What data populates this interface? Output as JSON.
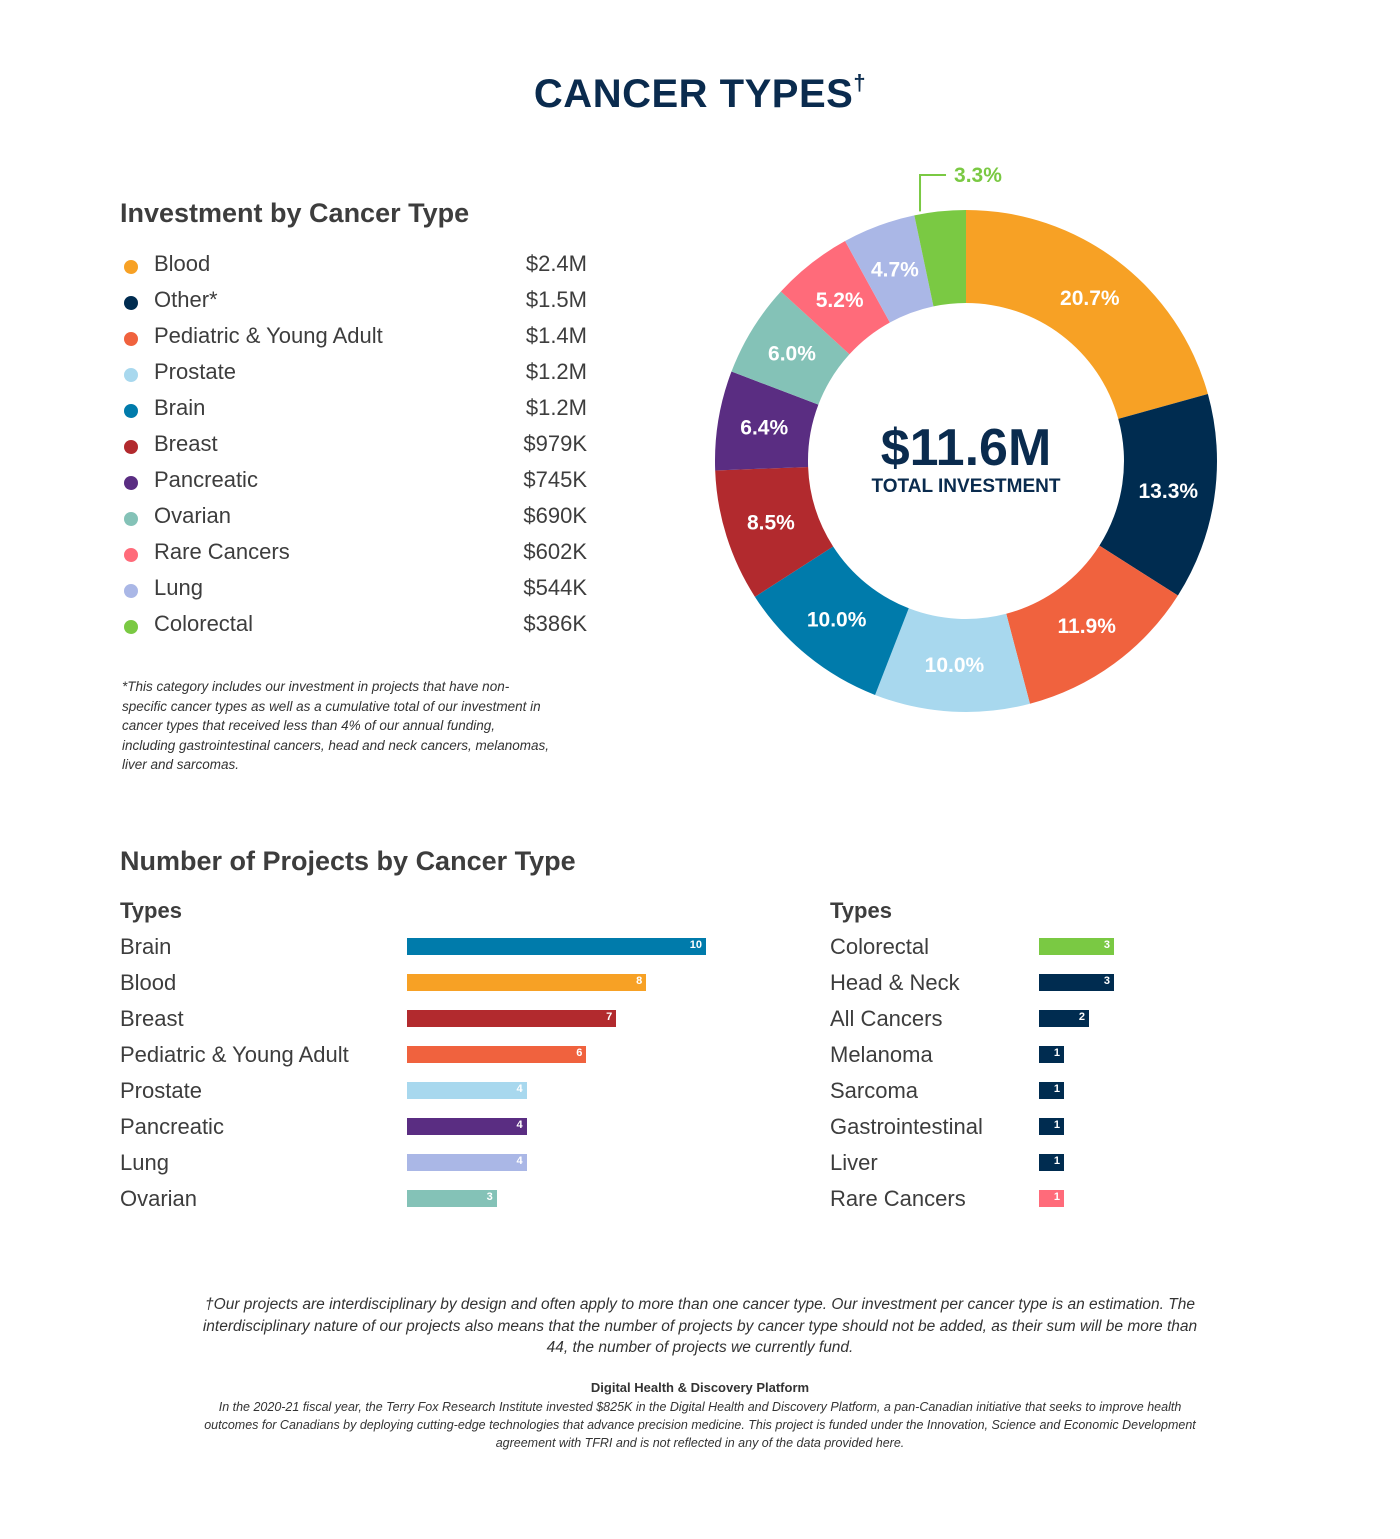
{
  "title": "CANCER TYPES",
  "title_mark": "†",
  "investment": {
    "heading": "Investment by Cancer Type",
    "total_value": "$11.6M",
    "total_label": "TOTAL INVESTMENT",
    "footnote": "*This category includes our investment in projects that have non-specific cancer types as well as a cumulative total of our investment in cancer types that received less than 4% of our annual funding, including gastrointestinal cancers, head and neck cancers, melanomas, liver and sarcomas."
  },
  "projects": {
    "heading": "Number of Projects by Cancer Type",
    "types_label_left": "Types",
    "types_label_right": "Types"
  },
  "footer": {
    "note": "†Our projects are interdisciplinary by design and often apply to more than one cancer type. Our investment per cancer type is an estimation. The interdisciplinary nature of our projects also means that the number of projects by cancer type should not be added, as their sum will be more than 44, the number of projects we currently fund.",
    "platform_title": "Digital Health & Discovery Platform",
    "platform_text": "In the 2020-21 fiscal year, the Terry Fox Research Institute invested $825K in the Digital Health and Discovery Platform, a pan-Canadian initiative that seeks to improve health outcomes for Canadians by deploying cutting-edge technologies that advance precision medicine. This project is funded under the Innovation, Science and Economic Development agreement with TFRI and is not reflected in any of the data provided here."
  },
  "chart_data": [
    {
      "type": "pie",
      "variant": "donut",
      "title": "Investment by Cancer Type",
      "start": "top, clockwise",
      "categories": [
        "Blood",
        "Other*",
        "Pediatric & Young Adult",
        "Prostate",
        "Brain",
        "Breast",
        "Pancreatic",
        "Ovarian",
        "Rare Cancers",
        "Lung",
        "Colorectal"
      ],
      "amounts": [
        "$2.4M",
        "$1.5M",
        "$1.4M",
        "$1.2M",
        "$1.2M",
        "$979K",
        "$745K",
        "$690K",
        "$602K",
        "$544K",
        "$386K"
      ],
      "values": [
        20.7,
        13.3,
        11.9,
        10.0,
        10.0,
        8.5,
        6.4,
        6.0,
        5.2,
        4.7,
        3.3
      ],
      "data_labels": [
        "20.7%",
        "13.3%",
        "11.9%",
        "10.0%",
        "10.0%",
        "8.5%",
        "6.4%",
        "6.0%",
        "5.2%",
        "4.7%",
        "3.3%"
      ],
      "colors": [
        "#f7a125",
        "#002c50",
        "#f0623e",
        "#a8d8ee",
        "#007bab",
        "#b22a2e",
        "#5a2d82",
        "#84c2b7",
        "#ff6b7a",
        "#aab7e6",
        "#7ac943"
      ],
      "legend": "left"
    },
    {
      "type": "bar",
      "orientation": "horizontal",
      "title": "Number of Projects by Cancer Type",
      "categories": [
        "Brain",
        "Blood",
        "Breast",
        "Pediatric & Young Adult",
        "Prostate",
        "Pancreatic",
        "Lung",
        "Ovarian"
      ],
      "values": [
        10,
        8,
        7,
        6,
        4,
        4,
        4,
        3
      ],
      "colors": [
        "#007bab",
        "#f7a125",
        "#b22a2e",
        "#f0623e",
        "#a8d8ee",
        "#5a2d82",
        "#aab7e6",
        "#84c2b7"
      ]
    },
    {
      "type": "bar",
      "orientation": "horizontal",
      "title": "Number of Projects by Cancer Type",
      "categories": [
        "Colorectal",
        "Head & Neck",
        "All Cancers",
        "Melanoma",
        "Sarcoma",
        "Gastrointestinal",
        "Liver",
        "Rare Cancers"
      ],
      "values": [
        3,
        3,
        2,
        1,
        1,
        1,
        1,
        1
      ],
      "colors": [
        "#7ac943",
        "#002c50",
        "#002c50",
        "#002c50",
        "#002c50",
        "#002c50",
        "#002c50",
        "#ff6b7a"
      ]
    }
  ]
}
